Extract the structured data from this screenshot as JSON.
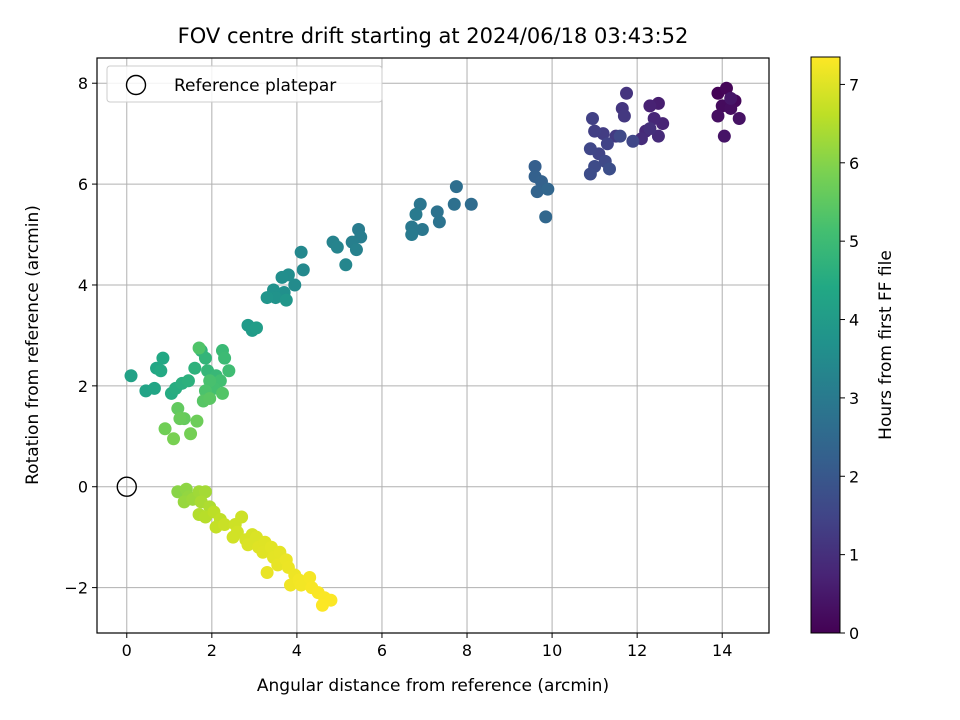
{
  "chart_data": {
    "type": "scatter",
    "title": "FOV centre drift starting at 2024/06/18 03:43:52",
    "xlabel": "Angular distance from reference (arcmin)",
    "ylabel": "Rotation from reference (arcmin)",
    "colorbar_label": "Hours from first FF file",
    "xlim": [
      -0.7,
      15.1
    ],
    "ylim": [
      -2.9,
      8.5
    ],
    "x_ticks": [
      0,
      2,
      4,
      6,
      8,
      10,
      12,
      14
    ],
    "y_ticks": [
      -2,
      0,
      2,
      4,
      6,
      8
    ],
    "colorbar_range": [
      0,
      7.35
    ],
    "colorbar_ticks": [
      0,
      1,
      2,
      3,
      4,
      5,
      6,
      7
    ],
    "colormap": "viridis",
    "grid": true,
    "legend": {
      "placement": "top-left",
      "entries": [
        {
          "label": "Reference platepar",
          "marker": "open-circle"
        }
      ]
    },
    "reference_point": {
      "x": 0,
      "y": 0
    },
    "points": [
      {
        "x": 13.9,
        "y": 7.8,
        "h": 0.05
      },
      {
        "x": 14.1,
        "y": 7.9,
        "h": 0.1
      },
      {
        "x": 14.3,
        "y": 7.65,
        "h": 0.15
      },
      {
        "x": 14.0,
        "y": 7.55,
        "h": 0.2
      },
      {
        "x": 14.2,
        "y": 7.5,
        "h": 0.25
      },
      {
        "x": 13.9,
        "y": 7.35,
        "h": 0.3
      },
      {
        "x": 14.4,
        "y": 7.3,
        "h": 0.35
      },
      {
        "x": 14.05,
        "y": 6.95,
        "h": 0.4
      },
      {
        "x": 14.2,
        "y": 7.7,
        "h": 0.45
      },
      {
        "x": 12.5,
        "y": 7.6,
        "h": 0.6
      },
      {
        "x": 12.3,
        "y": 7.55,
        "h": 0.7
      },
      {
        "x": 12.6,
        "y": 7.2,
        "h": 0.75
      },
      {
        "x": 12.4,
        "y": 7.3,
        "h": 0.8
      },
      {
        "x": 12.2,
        "y": 7.05,
        "h": 0.85
      },
      {
        "x": 12.5,
        "y": 6.95,
        "h": 0.9
      },
      {
        "x": 12.1,
        "y": 6.9,
        "h": 0.95
      },
      {
        "x": 12.3,
        "y": 7.1,
        "h": 1.0
      },
      {
        "x": 11.75,
        "y": 7.8,
        "h": 1.1
      },
      {
        "x": 11.65,
        "y": 7.5,
        "h": 1.15
      },
      {
        "x": 11.7,
        "y": 7.35,
        "h": 1.2
      },
      {
        "x": 11.5,
        "y": 6.95,
        "h": 1.25
      },
      {
        "x": 11.2,
        "y": 7.0,
        "h": 1.3
      },
      {
        "x": 11.0,
        "y": 7.05,
        "h": 1.35
      },
      {
        "x": 10.95,
        "y": 7.3,
        "h": 1.4
      },
      {
        "x": 11.3,
        "y": 6.8,
        "h": 1.45
      },
      {
        "x": 11.1,
        "y": 6.6,
        "h": 1.5
      },
      {
        "x": 10.9,
        "y": 6.7,
        "h": 1.55
      },
      {
        "x": 11.25,
        "y": 6.45,
        "h": 1.6
      },
      {
        "x": 11.0,
        "y": 6.35,
        "h": 1.65
      },
      {
        "x": 10.9,
        "y": 6.2,
        "h": 1.7
      },
      {
        "x": 11.35,
        "y": 6.3,
        "h": 1.75
      },
      {
        "x": 11.9,
        "y": 6.85,
        "h": 1.55
      },
      {
        "x": 11.6,
        "y": 6.95,
        "h": 1.6
      },
      {
        "x": 9.6,
        "y": 6.35,
        "h": 2.2
      },
      {
        "x": 9.6,
        "y": 6.15,
        "h": 2.25
      },
      {
        "x": 9.75,
        "y": 6.05,
        "h": 2.3
      },
      {
        "x": 9.65,
        "y": 5.85,
        "h": 2.35
      },
      {
        "x": 9.9,
        "y": 5.9,
        "h": 2.4
      },
      {
        "x": 9.85,
        "y": 5.35,
        "h": 2.45
      },
      {
        "x": 8.1,
        "y": 5.6,
        "h": 2.6
      },
      {
        "x": 7.75,
        "y": 5.95,
        "h": 2.65
      },
      {
        "x": 7.7,
        "y": 5.6,
        "h": 2.7
      },
      {
        "x": 7.3,
        "y": 5.45,
        "h": 2.75
      },
      {
        "x": 7.35,
        "y": 5.25,
        "h": 2.8
      },
      {
        "x": 6.9,
        "y": 5.6,
        "h": 2.85
      },
      {
        "x": 6.95,
        "y": 5.1,
        "h": 2.9
      },
      {
        "x": 6.7,
        "y": 5.15,
        "h": 2.95
      },
      {
        "x": 6.7,
        "y": 5.0,
        "h": 3.0
      },
      {
        "x": 6.8,
        "y": 5.4,
        "h": 3.0
      },
      {
        "x": 5.45,
        "y": 5.1,
        "h": 3.05
      },
      {
        "x": 5.5,
        "y": 4.95,
        "h": 3.1
      },
      {
        "x": 5.3,
        "y": 4.85,
        "h": 3.15
      },
      {
        "x": 5.4,
        "y": 4.7,
        "h": 3.2
      },
      {
        "x": 4.85,
        "y": 4.85,
        "h": 3.25
      },
      {
        "x": 4.95,
        "y": 4.75,
        "h": 3.3
      },
      {
        "x": 5.15,
        "y": 4.4,
        "h": 3.35
      },
      {
        "x": 4.1,
        "y": 4.65,
        "h": 3.4
      },
      {
        "x": 4.15,
        "y": 4.3,
        "h": 3.45
      },
      {
        "x": 3.95,
        "y": 4.0,
        "h": 3.5
      },
      {
        "x": 3.8,
        "y": 4.2,
        "h": 3.55
      },
      {
        "x": 3.65,
        "y": 4.15,
        "h": 3.6
      },
      {
        "x": 3.7,
        "y": 3.85,
        "h": 3.65
      },
      {
        "x": 3.45,
        "y": 3.9,
        "h": 3.7
      },
      {
        "x": 3.5,
        "y": 3.75,
        "h": 3.75
      },
      {
        "x": 3.3,
        "y": 3.75,
        "h": 3.8
      },
      {
        "x": 3.75,
        "y": 3.7,
        "h": 3.85
      },
      {
        "x": 2.85,
        "y": 3.2,
        "h": 3.95
      },
      {
        "x": 2.95,
        "y": 3.1,
        "h": 4.0
      },
      {
        "x": 3.05,
        "y": 3.15,
        "h": 4.05
      },
      {
        "x": 0.1,
        "y": 2.2,
        "h": 4.2
      },
      {
        "x": 0.45,
        "y": 1.9,
        "h": 4.25
      },
      {
        "x": 0.65,
        "y": 1.95,
        "h": 4.3
      },
      {
        "x": 0.7,
        "y": 2.35,
        "h": 4.35
      },
      {
        "x": 0.85,
        "y": 2.55,
        "h": 4.4
      },
      {
        "x": 0.8,
        "y": 2.3,
        "h": 4.45
      },
      {
        "x": 1.05,
        "y": 1.85,
        "h": 4.5
      },
      {
        "x": 1.15,
        "y": 1.95,
        "h": 4.55
      },
      {
        "x": 1.3,
        "y": 2.05,
        "h": 4.6
      },
      {
        "x": 1.45,
        "y": 2.1,
        "h": 4.65
      },
      {
        "x": 1.6,
        "y": 2.35,
        "h": 4.7
      },
      {
        "x": 1.75,
        "y": 2.7,
        "h": 4.75
      },
      {
        "x": 1.85,
        "y": 2.55,
        "h": 4.8
      },
      {
        "x": 1.9,
        "y": 2.3,
        "h": 4.85
      },
      {
        "x": 2.1,
        "y": 2.2,
        "h": 4.9
      },
      {
        "x": 2.25,
        "y": 2.7,
        "h": 4.95
      },
      {
        "x": 2.3,
        "y": 2.55,
        "h": 5.0
      },
      {
        "x": 2.4,
        "y": 2.3,
        "h": 5.05
      },
      {
        "x": 2.2,
        "y": 2.1,
        "h": 5.1
      },
      {
        "x": 2.05,
        "y": 1.95,
        "h": 5.15
      },
      {
        "x": 1.95,
        "y": 2.1,
        "h": 5.2
      },
      {
        "x": 1.85,
        "y": 1.9,
        "h": 5.25
      },
      {
        "x": 1.7,
        "y": 2.75,
        "h": 5.3
      },
      {
        "x": 2.25,
        "y": 1.85,
        "h": 5.35
      },
      {
        "x": 1.8,
        "y": 1.7,
        "h": 5.4
      },
      {
        "x": 1.95,
        "y": 1.75,
        "h": 5.45
      },
      {
        "x": 1.2,
        "y": 1.55,
        "h": 5.55
      },
      {
        "x": 1.35,
        "y": 1.35,
        "h": 5.6
      },
      {
        "x": 1.25,
        "y": 1.35,
        "h": 5.65
      },
      {
        "x": 1.65,
        "y": 1.3,
        "h": 5.7
      },
      {
        "x": 0.9,
        "y": 1.15,
        "h": 5.75
      },
      {
        "x": 1.5,
        "y": 1.05,
        "h": 5.8
      },
      {
        "x": 1.1,
        "y": 0.95,
        "h": 5.85
      },
      {
        "x": 1.2,
        "y": -0.1,
        "h": 6.05
      },
      {
        "x": 1.4,
        "y": -0.05,
        "h": 6.1
      },
      {
        "x": 1.45,
        "y": -0.2,
        "h": 6.15
      },
      {
        "x": 1.35,
        "y": -0.3,
        "h": 6.2
      },
      {
        "x": 1.55,
        "y": -0.25,
        "h": 6.25
      },
      {
        "x": 1.7,
        "y": -0.1,
        "h": 6.3
      },
      {
        "x": 1.85,
        "y": -0.1,
        "h": 6.35
      },
      {
        "x": 1.75,
        "y": -0.3,
        "h": 6.4
      },
      {
        "x": 1.95,
        "y": -0.4,
        "h": 6.45
      },
      {
        "x": 1.7,
        "y": -0.55,
        "h": 6.5
      },
      {
        "x": 1.85,
        "y": -0.6,
        "h": 6.55
      },
      {
        "x": 2.05,
        "y": -0.5,
        "h": 6.6
      },
      {
        "x": 2.2,
        "y": -0.65,
        "h": 6.65
      },
      {
        "x": 2.1,
        "y": -0.8,
        "h": 6.7
      },
      {
        "x": 2.3,
        "y": -0.75,
        "h": 6.75
      },
      {
        "x": 2.55,
        "y": -0.75,
        "h": 6.8
      },
      {
        "x": 2.7,
        "y": -0.6,
        "h": 6.8
      },
      {
        "x": 2.6,
        "y": -0.9,
        "h": 6.85
      },
      {
        "x": 2.5,
        "y": -1.0,
        "h": 6.85
      },
      {
        "x": 2.8,
        "y": -1.05,
        "h": 6.9
      },
      {
        "x": 2.95,
        "y": -0.95,
        "h": 6.9
      },
      {
        "x": 2.85,
        "y": -1.15,
        "h": 6.95
      },
      {
        "x": 3.05,
        "y": -1.0,
        "h": 6.95
      },
      {
        "x": 3.1,
        "y": -1.2,
        "h": 7.0
      },
      {
        "x": 3.25,
        "y": -1.1,
        "h": 7.0
      },
      {
        "x": 3.2,
        "y": -1.3,
        "h": 7.02
      },
      {
        "x": 3.4,
        "y": -1.2,
        "h": 7.04
      },
      {
        "x": 3.45,
        "y": -1.4,
        "h": 7.06
      },
      {
        "x": 3.6,
        "y": -1.3,
        "h": 7.08
      },
      {
        "x": 3.55,
        "y": -1.55,
        "h": 7.1
      },
      {
        "x": 3.3,
        "y": -1.7,
        "h": 7.12
      },
      {
        "x": 3.75,
        "y": -1.45,
        "h": 7.14
      },
      {
        "x": 3.8,
        "y": -1.6,
        "h": 7.16
      },
      {
        "x": 3.95,
        "y": -1.75,
        "h": 7.18
      },
      {
        "x": 3.85,
        "y": -1.95,
        "h": 7.2
      },
      {
        "x": 4.05,
        "y": -1.85,
        "h": 7.22
      },
      {
        "x": 4.1,
        "y": -1.95,
        "h": 7.24
      },
      {
        "x": 4.3,
        "y": -1.8,
        "h": 7.26
      },
      {
        "x": 4.35,
        "y": -2.0,
        "h": 7.28
      },
      {
        "x": 4.5,
        "y": -2.1,
        "h": 7.3
      },
      {
        "x": 4.65,
        "y": -2.2,
        "h": 7.32
      },
      {
        "x": 4.8,
        "y": -2.25,
        "h": 7.33
      },
      {
        "x": 4.6,
        "y": -2.35,
        "h": 7.34
      }
    ]
  }
}
